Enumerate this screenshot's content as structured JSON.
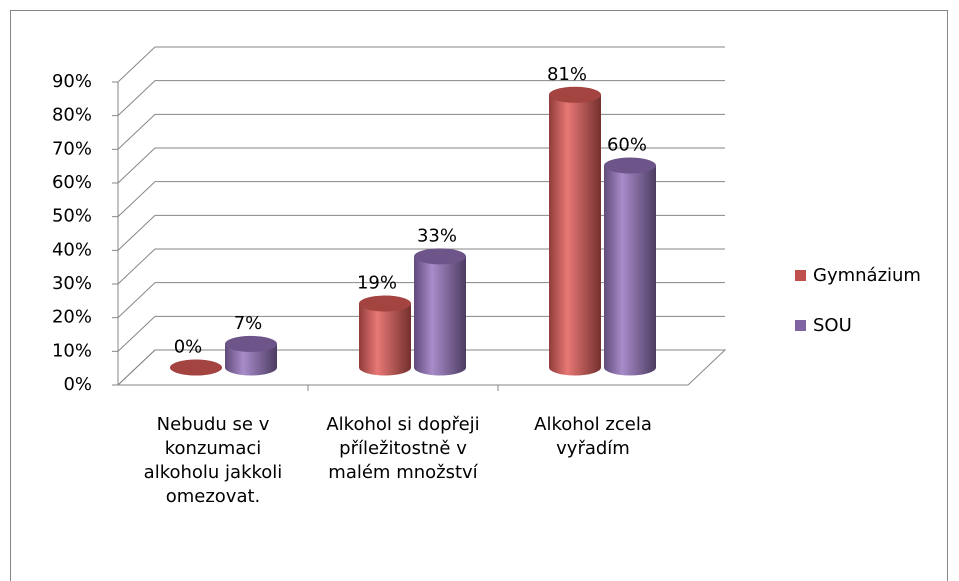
{
  "chart_data": {
    "type": "bar3d",
    "categories": [
      "Nebudu se v konzumaci alkoholu jakkoli omezovat.",
      "Alkohol si dopřeji příležitostně v malém množství",
      "Alkohol zcela vyřadím"
    ],
    "series": [
      {
        "name": "Gymnázium",
        "color": "#c0504d",
        "values": [
          0,
          19,
          81
        ],
        "value_labels": [
          "0%",
          "19%",
          "81%"
        ]
      },
      {
        "name": "SOU",
        "color": "#8064a2",
        "values": [
          7,
          33,
          60
        ],
        "value_labels": [
          "7%",
          "33%",
          "60%"
        ]
      }
    ],
    "ylim": [
      0,
      90
    ],
    "yticks": [
      {
        "value": 0,
        "label": "0%"
      },
      {
        "value": 10,
        "label": "10%"
      },
      {
        "value": 20,
        "label": "20%"
      },
      {
        "value": 30,
        "label": "30%"
      },
      {
        "value": 40,
        "label": "40%"
      },
      {
        "value": 50,
        "label": "50%"
      },
      {
        "value": 60,
        "label": "60%"
      },
      {
        "value": 70,
        "label": "70%"
      },
      {
        "value": 80,
        "label": "80%"
      },
      {
        "value": 90,
        "label": "90%"
      }
    ],
    "grid": true,
    "legend": "right"
  }
}
